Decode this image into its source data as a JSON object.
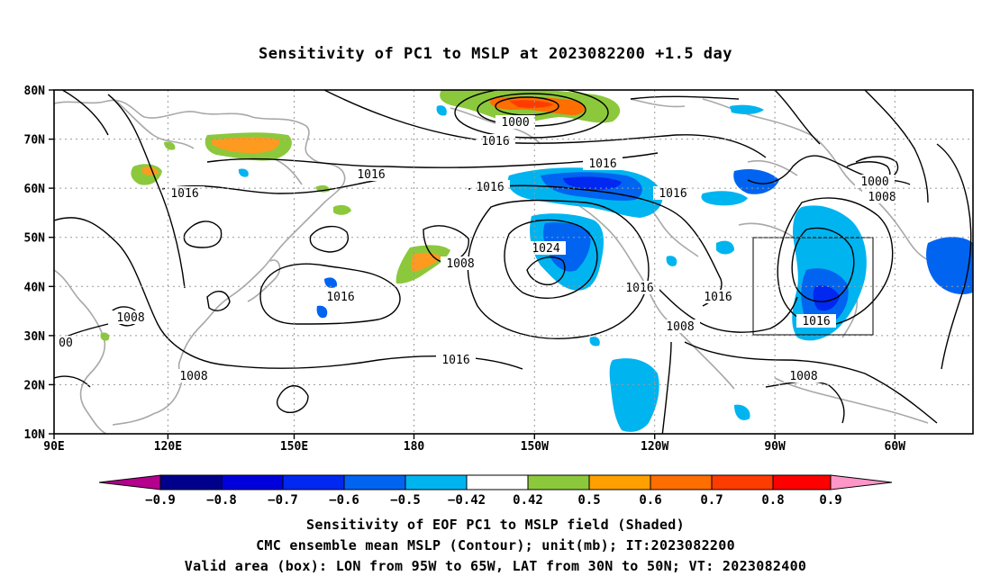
{
  "title": "Sensitivity of PC1 to MSLP at 2023082200 +1.5 day",
  "lat_labels": [
    "80N",
    "70N",
    "60N",
    "50N",
    "40N",
    "30N",
    "20N",
    "10N"
  ],
  "lon_labels": [
    "90E",
    "120E",
    "150E",
    "180",
    "150W",
    "120W",
    "90W",
    "60W"
  ],
  "contour_labels": [
    {
      "id": "c1000a",
      "text": "1000"
    },
    {
      "id": "c1016a",
      "text": "1016"
    },
    {
      "id": "c1016b",
      "text": "1016"
    },
    {
      "id": "c1016c",
      "text": "1016"
    },
    {
      "id": "c1016d",
      "text": "1016"
    },
    {
      "id": "c1016e",
      "text": "1016"
    },
    {
      "id": "c1016f",
      "text": "1016"
    },
    {
      "id": "c1024",
      "text": "1024"
    },
    {
      "id": "c1008a",
      "text": "1008"
    },
    {
      "id": "c1016g",
      "text": "1016"
    },
    {
      "id": "c1008b",
      "text": "1008"
    },
    {
      "id": "c00",
      "text": "00"
    },
    {
      "id": "c1008c",
      "text": "1008"
    },
    {
      "id": "c1016h",
      "text": "1016"
    },
    {
      "id": "c1016i",
      "text": "1016"
    },
    {
      "id": "c1008d",
      "text": "1008"
    },
    {
      "id": "c1016j",
      "text": "1016"
    },
    {
      "id": "c1000b",
      "text": "1000"
    },
    {
      "id": "c1008e",
      "text": "1008"
    },
    {
      "id": "c1008f",
      "text": "1008"
    },
    {
      "id": "c1016k",
      "text": "1016"
    }
  ],
  "colorbar": {
    "colors": [
      "#b4008c",
      "#00008c",
      "#0000dc",
      "#0028f0",
      "#0064f0",
      "#00b4f0",
      "#00d2ff",
      "#ffffff",
      "#8cc83c",
      "#ffa000",
      "#ff6e00",
      "#ff3c00",
      "#ff0000",
      "#ff96c8"
    ],
    "labels": [
      "−0.9",
      "−0.8",
      "−0.7",
      "−0.6",
      "−0.5",
      "−0.42",
      "0.42",
      "0.5",
      "0.6",
      "0.7",
      "0.8",
      "0.9"
    ]
  },
  "captions": {
    "line1": "Sensitivity of EOF PC1 to MSLP field (Shaded)",
    "line2": "CMC ensemble mean MSLP (Contour); unit(mb); IT:2023082200",
    "line3": "Valid area (box): LON from 95W to 65W, LAT from 30N to 50N; VT: 2023082400"
  }
}
